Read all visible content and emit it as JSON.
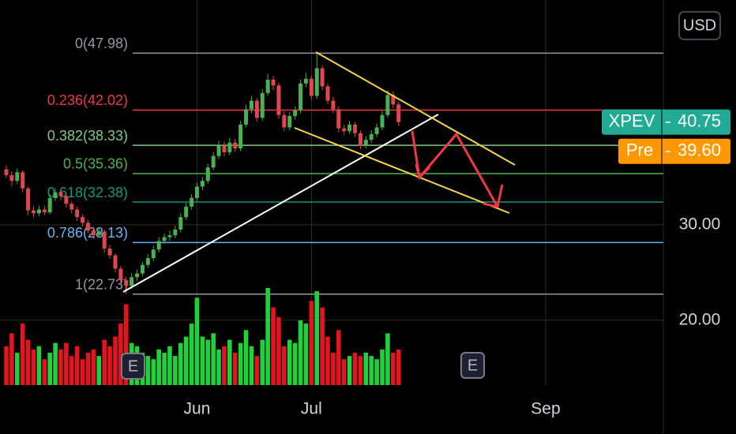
{
  "chart_data": {
    "type": "candlestick",
    "currency": "USD",
    "open": [
      35.8,
      35.2,
      34.6,
      35.5,
      33.8,
      31.5,
      31.2,
      31.6,
      31.3,
      32.8,
      33.4,
      33.0,
      32.2,
      31.6,
      30.8,
      30.2,
      29.4,
      28.9,
      29.3,
      27.5,
      26.8,
      25.4,
      24.2,
      23.6,
      24.5,
      24.9,
      25.8,
      26.5,
      27.4,
      28.3,
      28.7,
      28.9,
      29.5,
      30.8,
      31.9,
      32.8,
      34.0,
      34.6,
      36.0,
      37.2,
      38.3,
      37.6,
      38.6,
      38.0,
      40.5,
      42.1,
      43.0,
      41.2,
      43.8,
      45.2,
      44.6,
      41.5,
      40.2,
      41.4,
      42.0,
      44.8,
      45.3,
      43.5,
      46.4,
      44.5,
      43.0,
      42.1,
      40.1,
      39.8,
      40.5,
      39.6,
      38.3,
      38.9,
      39.5,
      40.2,
      41.5,
      43.6,
      42.6
    ],
    "high": [
      36.2,
      35.6,
      35.9,
      35.7,
      34.0,
      31.9,
      32.0,
      32.0,
      33.2,
      33.8,
      33.7,
      33.2,
      32.5,
      31.9,
      31.1,
      30.5,
      29.8,
      29.7,
      29.5,
      27.9,
      27.0,
      25.7,
      24.6,
      24.9,
      25.3,
      26.1,
      26.9,
      27.8,
      28.7,
      29.1,
      29.4,
      29.9,
      31.2,
      32.3,
      33.2,
      34.4,
      35.0,
      36.4,
      37.6,
      38.8,
      38.7,
      39.1,
      39.0,
      40.9,
      42.6,
      43.5,
      43.3,
      44.2,
      45.8,
      45.6,
      44.9,
      41.9,
      41.8,
      42.4,
      45.2,
      45.9,
      45.6,
      47.98,
      46.7,
      44.8,
      43.4,
      42.4,
      40.5,
      40.9,
      40.8,
      39.9,
      39.3,
      39.9,
      40.6,
      41.9,
      44.1,
      44.0,
      42.9
    ],
    "low": [
      34.9,
      34.0,
      34.3,
      33.4,
      31.0,
      30.8,
      30.9,
      31.0,
      31.1,
      32.5,
      32.6,
      31.8,
      31.2,
      30.4,
      29.8,
      29.1,
      28.5,
      28.6,
      27.1,
      26.4,
      25.0,
      23.8,
      22.73,
      23.3,
      24.1,
      24.6,
      25.5,
      26.2,
      27.1,
      28.0,
      28.3,
      28.6,
      29.2,
      30.5,
      31.6,
      32.5,
      33.6,
      34.3,
      35.7,
      36.9,
      37.2,
      37.3,
      37.6,
      37.7,
      40.2,
      41.7,
      40.8,
      40.9,
      43.5,
      44.1,
      41.1,
      39.8,
      39.9,
      41.0,
      41.7,
      44.4,
      43.1,
      43.2,
      44.1,
      42.6,
      41.7,
      39.7,
      39.4,
      39.5,
      39.2,
      37.9,
      38.0,
      38.6,
      39.2,
      39.9,
      41.2,
      42.2,
      40.3
    ],
    "close": [
      35.2,
      34.6,
      35.5,
      33.8,
      31.5,
      31.2,
      31.6,
      31.3,
      32.8,
      33.4,
      33.0,
      32.2,
      31.6,
      30.8,
      30.2,
      29.4,
      28.9,
      29.3,
      27.5,
      26.8,
      25.4,
      24.2,
      23.6,
      24.5,
      24.9,
      25.8,
      26.5,
      27.4,
      28.3,
      28.7,
      28.9,
      29.5,
      30.8,
      31.9,
      32.8,
      34.0,
      34.6,
      36.0,
      37.2,
      38.3,
      37.6,
      38.6,
      38.0,
      40.5,
      42.1,
      43.0,
      41.2,
      43.8,
      45.2,
      44.6,
      41.5,
      40.2,
      41.4,
      42.0,
      44.8,
      45.3,
      43.5,
      46.4,
      44.5,
      43.0,
      42.1,
      40.1,
      39.8,
      40.5,
      39.6,
      38.3,
      38.9,
      39.5,
      40.2,
      41.5,
      43.6,
      42.6,
      40.75
    ],
    "volume": [
      12,
      16,
      10,
      19,
      14,
      11,
      12,
      8,
      10,
      13,
      11,
      13,
      9,
      12,
      8,
      10,
      11,
      9,
      14,
      12,
      15,
      19,
      25,
      13,
      12,
      10,
      9,
      8,
      11,
      10,
      12,
      9,
      13,
      15,
      19,
      27,
      15,
      14,
      16,
      11,
      12,
      14,
      10,
      13,
      17,
      12,
      9,
      14,
      30,
      24,
      21,
      12,
      14,
      13,
      20,
      19,
      26,
      29,
      24,
      15,
      10,
      17,
      8,
      9,
      10,
      9,
      10,
      9,
      8,
      11,
      16,
      10,
      11
    ],
    "up_color": "#4caf50",
    "down_color": "#e0474c",
    "volume_up_color": "#1fd13a",
    "volume_down_color": "#e3141b",
    "ylim": [
      13.2,
      53.55
    ],
    "yticks": [
      {
        "value": 20,
        "label": "20.00"
      },
      {
        "value": 30,
        "label": "30.00"
      }
    ],
    "xlim": [
      -1.16,
      120.6
    ],
    "xticks": [
      {
        "value": 35,
        "label": "Jun"
      },
      {
        "value": 56,
        "label": "Jul"
      },
      {
        "value": 99,
        "label": "Sep"
      }
    ],
    "grid": true,
    "fib_levels": [
      {
        "label": "0(47.98)",
        "value": 47.98,
        "color": "#9598a1"
      },
      {
        "label": "0.236(42.02)",
        "value": 42.02,
        "color": "#f23645"
      },
      {
        "label": "0.382(38.33)",
        "value": 38.33,
        "color": "#81c784"
      },
      {
        "label": "0.5(35.36)",
        "value": 35.36,
        "color": "#4caf50"
      },
      {
        "label": "0.618(32.38)",
        "value": 32.38,
        "color": "#089981"
      },
      {
        "label": "0.786(28.13)",
        "value": 28.13,
        "color": "#64b5f6"
      },
      {
        "label": "1(22.73)",
        "value": 22.73,
        "color": "#9598a1"
      }
    ],
    "last_price": {
      "symbol": "XPEV",
      "value": 40.75,
      "color": "#22ab94"
    },
    "pre_market": {
      "label": "Pre",
      "value": {
        "value": 39.6,
        "label": "39.60"
      },
      "color": "#ff9800"
    },
    "earnings_markers": [
      "E",
      "E"
    ]
  }
}
